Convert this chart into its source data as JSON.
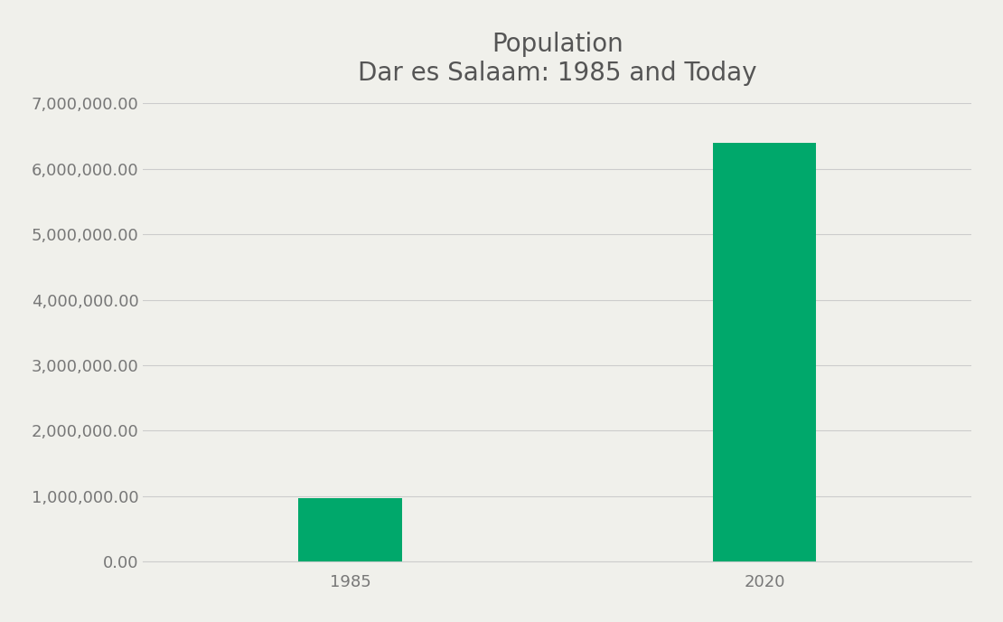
{
  "title_line1": "Population",
  "title_line2": "Dar es Salaam: 1985 and Today",
  "categories": [
    "1985",
    "2020"
  ],
  "values": [
    970000,
    6400000
  ],
  "bar_color": "#00A86B",
  "background_color": "#f0f0eb",
  "ylim": [
    0,
    7000000
  ],
  "yticks": [
    0,
    1000000,
    2000000,
    3000000,
    4000000,
    5000000,
    6000000,
    7000000
  ],
  "title_fontsize": 20,
  "tick_fontsize": 13,
  "title_color": "#555555",
  "tick_color": "#777777",
  "grid_color": "#cccccc",
  "bar_width": 0.25
}
